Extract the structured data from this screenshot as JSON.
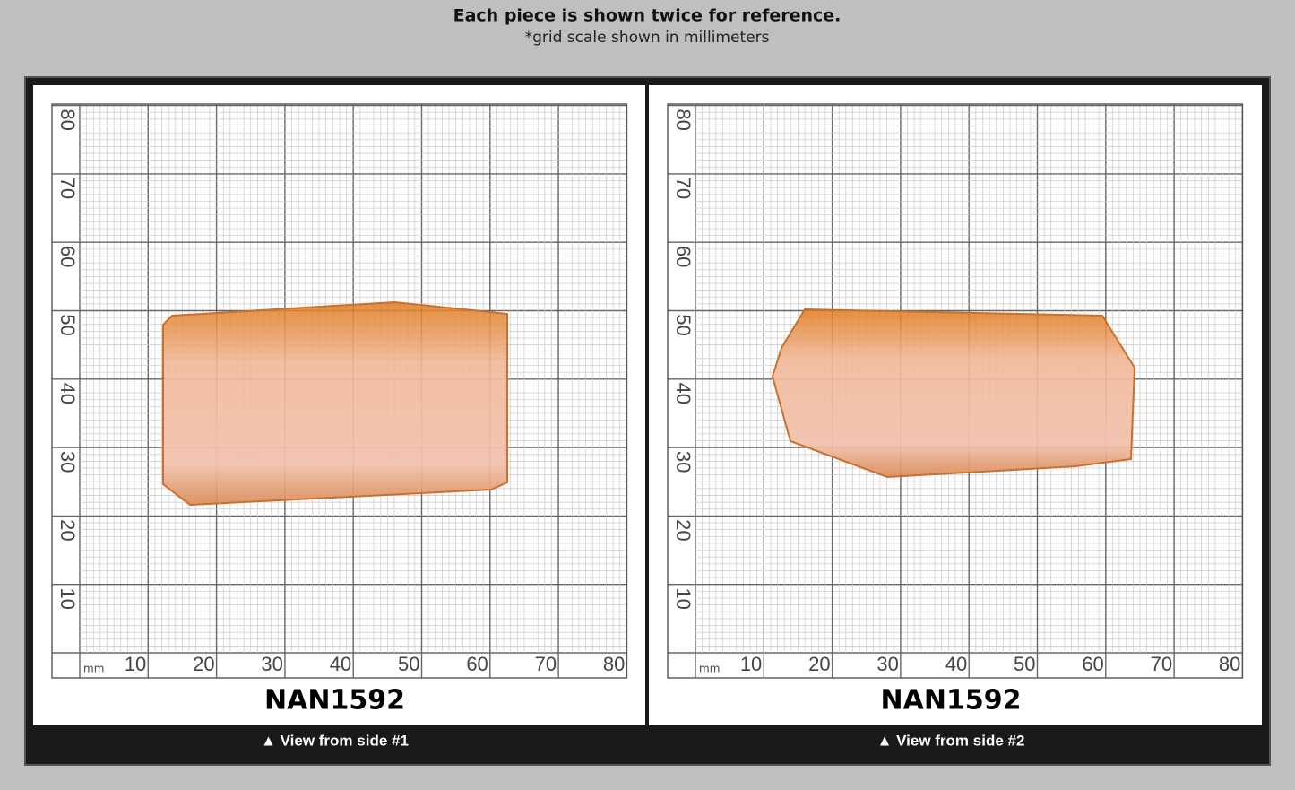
{
  "header": {
    "title": "Each piece is shown twice for reference.",
    "subtitle": "*grid scale shown in millimeters"
  },
  "panels": [
    {
      "unit": "mm",
      "x_ticks": [
        10,
        20,
        30,
        40,
        50,
        60,
        70,
        80
      ],
      "y_ticks": [
        10,
        20,
        30,
        40,
        50,
        60,
        70,
        80
      ],
      "id": "NAN1592",
      "caption": "▲ View from side #1"
    },
    {
      "unit": "mm",
      "x_ticks": [
        10,
        20,
        30,
        40,
        50,
        60,
        70,
        80
      ],
      "y_ticks": [
        10,
        20,
        30,
        40,
        50,
        60,
        70,
        80
      ],
      "id": "NAN1592",
      "caption": "▲ View from side #2"
    }
  ]
}
